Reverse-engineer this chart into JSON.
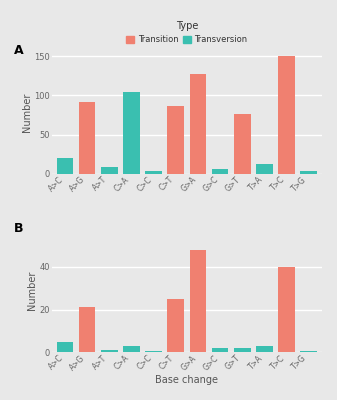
{
  "categories": [
    "A>C",
    "A>G",
    "A>T",
    "C>A",
    "C>C",
    "C>T",
    "G>A",
    "G>C",
    "G>T",
    "T>A",
    "T>C",
    "T>G"
  ],
  "panel_A": {
    "Transition": [
      0,
      92,
      0,
      0,
      0,
      87,
      128,
      0,
      76,
      0,
      150,
      0
    ],
    "Transversion": [
      20,
      0,
      8,
      105,
      3,
      0,
      0,
      6,
      0,
      12,
      0,
      4
    ]
  },
  "panel_B": {
    "Transition": [
      0,
      21,
      0,
      0,
      0,
      25,
      48,
      0,
      0,
      0,
      40,
      0
    ],
    "Transversion": [
      5,
      0,
      1,
      3,
      0.5,
      0,
      0,
      2,
      2,
      3,
      0,
      0.5
    ]
  },
  "color_transition": "#F08070",
  "color_transversion": "#3ABFB0",
  "background_color": "#E8E8E8",
  "ylabel": "Number",
  "xlabel": "Base change",
  "label_A": "A",
  "label_B": "B",
  "ylim_A": [
    0,
    158
  ],
  "ylim_B": [
    0,
    58
  ],
  "yticks_A": [
    0,
    50,
    100,
    150
  ],
  "yticks_B": [
    0,
    20,
    40
  ],
  "legend_title": "Type",
  "bar_width": 0.75
}
